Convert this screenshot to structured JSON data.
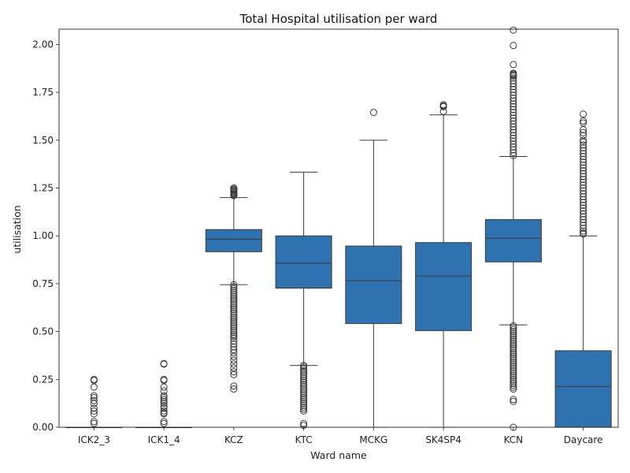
{
  "chart_data": {
    "type": "box",
    "title": "Total Hospital utilisation per ward",
    "xlabel": "Ward name",
    "ylabel": "utilisation",
    "ylim": [
      0,
      2.08
    ],
    "yticks": [
      "0.00",
      "0.25",
      "0.50",
      "0.75",
      "1.00",
      "1.25",
      "1.50",
      "1.75",
      "2.00"
    ],
    "grid": false,
    "box_color": "#2e72b0",
    "line_color": "#3a3a3a",
    "categories": [
      {
        "name": "ICK2_3",
        "q1": 0.0,
        "median": 0.0,
        "q3": 0.0,
        "whisker_low": 0.0,
        "whisker_high": 0.0,
        "outliers": [
          0.25,
          0.245,
          0.21,
          0.165,
          0.155,
          0.14,
          0.125,
          0.1,
          0.085,
          0.07,
          0.03,
          0.02
        ]
      },
      {
        "name": "ICK1_4",
        "q1": 0.0,
        "median": 0.0,
        "q3": 0.0,
        "whisker_low": 0.0,
        "whisker_high": 0.0,
        "outliers": [
          0.333,
          0.33,
          0.25,
          0.245,
          0.21,
          0.19,
          0.165,
          0.155,
          0.145,
          0.135,
          0.125,
          0.11,
          0.1,
          0.085,
          0.075,
          0.07,
          0.03,
          0.02
        ]
      },
      {
        "name": "KCZ",
        "q1": 0.917,
        "median": 0.983,
        "q3": 1.033,
        "whisker_low": 0.745,
        "whisker_high": 1.2,
        "outliers": [
          1.25,
          1.245,
          1.24,
          1.235,
          1.23,
          1.225,
          1.22,
          1.215,
          1.21,
          0.745,
          0.735,
          0.725,
          0.715,
          0.705,
          0.695,
          0.685,
          0.675,
          0.665,
          0.655,
          0.645,
          0.635,
          0.625,
          0.615,
          0.605,
          0.595,
          0.585,
          0.575,
          0.565,
          0.555,
          0.545,
          0.535,
          0.525,
          0.515,
          0.505,
          0.495,
          0.485,
          0.475,
          0.465,
          0.45,
          0.435,
          0.42,
          0.405,
          0.39,
          0.37,
          0.35,
          0.33,
          0.31,
          0.29,
          0.275,
          0.215,
          0.2
        ]
      },
      {
        "name": "KTC",
        "q1": 0.727,
        "median": 0.857,
        "q3": 1.0,
        "whisker_low": 0.323,
        "whisker_high": 1.333,
        "outliers": [
          0.323,
          0.315,
          0.305,
          0.295,
          0.285,
          0.275,
          0.265,
          0.255,
          0.245,
          0.235,
          0.225,
          0.215,
          0.205,
          0.195,
          0.185,
          0.175,
          0.165,
          0.155,
          0.145,
          0.135,
          0.125,
          0.115,
          0.105,
          0.095,
          0.085,
          0.02,
          0.01
        ]
      },
      {
        "name": "MCKG",
        "q1": 0.542,
        "median": 0.766,
        "q3": 0.947,
        "whisker_low": 0.0,
        "whisker_high": 1.5,
        "outliers": [
          1.645
        ]
      },
      {
        "name": "SK4SP4",
        "q1": 0.505,
        "median": 0.79,
        "q3": 0.965,
        "whisker_low": 0.0,
        "whisker_high": 1.632,
        "outliers": [
          1.685,
          1.68,
          1.675,
          1.65
        ]
      },
      {
        "name": "KCN",
        "q1": 0.864,
        "median": 0.988,
        "q3": 1.085,
        "whisker_low": 0.535,
        "whisker_high": 1.415,
        "outliers": [
          2.075,
          1.995,
          1.895,
          1.85,
          1.845,
          1.84,
          1.835,
          1.825,
          1.81,
          1.795,
          1.78,
          1.765,
          1.75,
          1.735,
          1.72,
          1.705,
          1.69,
          1.675,
          1.66,
          1.645,
          1.63,
          1.615,
          1.6,
          1.585,
          1.57,
          1.555,
          1.54,
          1.525,
          1.51,
          1.495,
          1.48,
          1.465,
          1.45,
          1.435,
          1.42,
          0.53,
          0.52,
          0.51,
          0.5,
          0.49,
          0.48,
          0.47,
          0.46,
          0.45,
          0.44,
          0.43,
          0.42,
          0.41,
          0.4,
          0.39,
          0.38,
          0.37,
          0.36,
          0.35,
          0.34,
          0.33,
          0.32,
          0.31,
          0.3,
          0.29,
          0.28,
          0.27,
          0.26,
          0.25,
          0.24,
          0.23,
          0.22,
          0.21,
          0.2,
          0.145,
          0.135,
          0.0
        ]
      },
      {
        "name": "Daycare",
        "q1": 0.0,
        "median": 0.213,
        "q3": 0.4,
        "whisker_low": 0.0,
        "whisker_high": 1.0,
        "outliers": [
          1.636,
          1.6,
          1.59,
          1.555,
          1.54,
          1.525,
          1.5,
          1.49,
          1.475,
          1.46,
          1.445,
          1.43,
          1.415,
          1.4,
          1.385,
          1.37,
          1.355,
          1.34,
          1.325,
          1.31,
          1.295,
          1.28,
          1.265,
          1.25,
          1.235,
          1.22,
          1.205,
          1.19,
          1.175,
          1.16,
          1.145,
          1.13,
          1.115,
          1.1,
          1.085,
          1.07,
          1.055,
          1.04,
          1.025,
          1.015,
          1.01
        ]
      }
    ]
  }
}
